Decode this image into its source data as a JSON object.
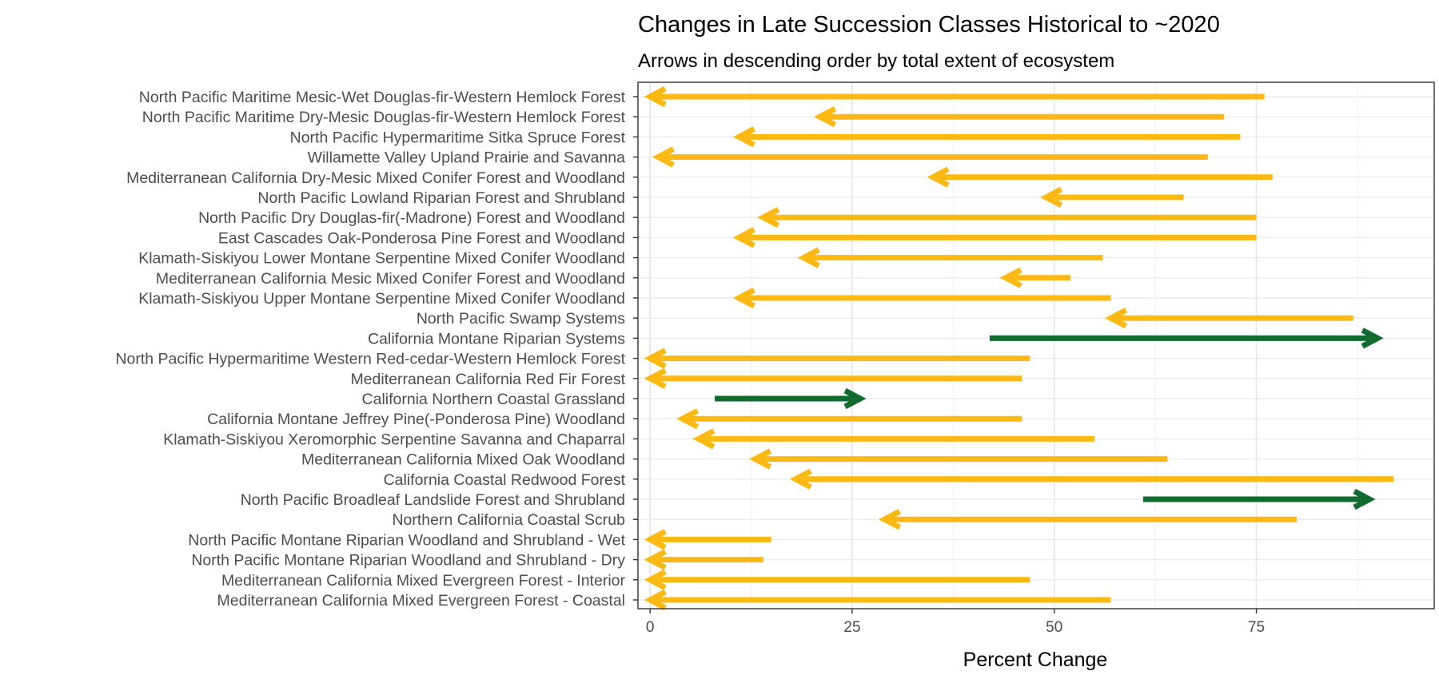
{
  "chart_data": {
    "type": "arrow",
    "title": "Changes in Late Succession Classes Historical to ~2020",
    "subtitle": "Arrows in descending order by total extent of ecosystem",
    "xlabel": "Percent Change",
    "ylabel": "",
    "xlim": [
      -1.5,
      97
    ],
    "xticks": [
      0,
      25,
      50,
      75
    ],
    "grid": true,
    "legend": "none",
    "colors": {
      "decrease": "#FDB913",
      "increase": "#116A2E"
    },
    "categories": [
      "North Pacific Maritime Mesic-Wet Douglas-fir-Western Hemlock Forest",
      "North Pacific Maritime Dry-Mesic Douglas-fir-Western Hemlock Forest",
      "North Pacific Hypermaritime Sitka Spruce Forest",
      "Willamette Valley Upland Prairie and Savanna",
      "Mediterranean California Dry-Mesic Mixed Conifer Forest and Woodland",
      "North Pacific Lowland Riparian Forest and Shrubland",
      "North Pacific Dry Douglas-fir(-Madrone) Forest and Woodland",
      "East Cascades Oak-Ponderosa Pine Forest and Woodland",
      "Klamath-Siskiyou Lower Montane Serpentine Mixed Conifer Woodland",
      "Mediterranean California Mesic Mixed Conifer Forest and Woodland",
      "Klamath-Siskiyou Upper Montane Serpentine Mixed Conifer Woodland",
      "North Pacific Swamp Systems",
      "California Montane Riparian Systems",
      "North Pacific Hypermaritime Western Red-cedar-Western Hemlock Forest",
      "Mediterranean California Red Fir Forest",
      "California Northern Coastal Grassland",
      "California Montane Jeffrey Pine(-Ponderosa Pine) Woodland",
      "Klamath-Siskiyou Xeromorphic Serpentine Savanna and Chaparral",
      "Mediterranean California Mixed Oak Woodland",
      "California Coastal Redwood Forest",
      "North Pacific Broadleaf Landslide Forest and Shrubland",
      "Northern California Coastal Scrub",
      "North Pacific Montane Riparian Woodland and Shrubland - Wet",
      "North Pacific Montane Riparian Woodland and Shrubland - Dry",
      "Mediterranean California Mixed Evergreen Forest - Interior",
      "Mediterranean California Mixed Evergreen Forest - Coastal"
    ],
    "historical": [
      76,
      71,
      73,
      69,
      77,
      66,
      75,
      75,
      56,
      52,
      57,
      87,
      42,
      47,
      46,
      8,
      46,
      55,
      64,
      92,
      61,
      80,
      15,
      14,
      47,
      57
    ],
    "current": [
      0,
      21,
      11,
      1,
      35,
      49,
      14,
      11,
      19,
      44,
      11,
      57,
      90,
      0,
      0,
      26,
      4,
      6,
      13,
      18,
      89,
      29,
      0,
      0,
      0,
      0
    ]
  }
}
